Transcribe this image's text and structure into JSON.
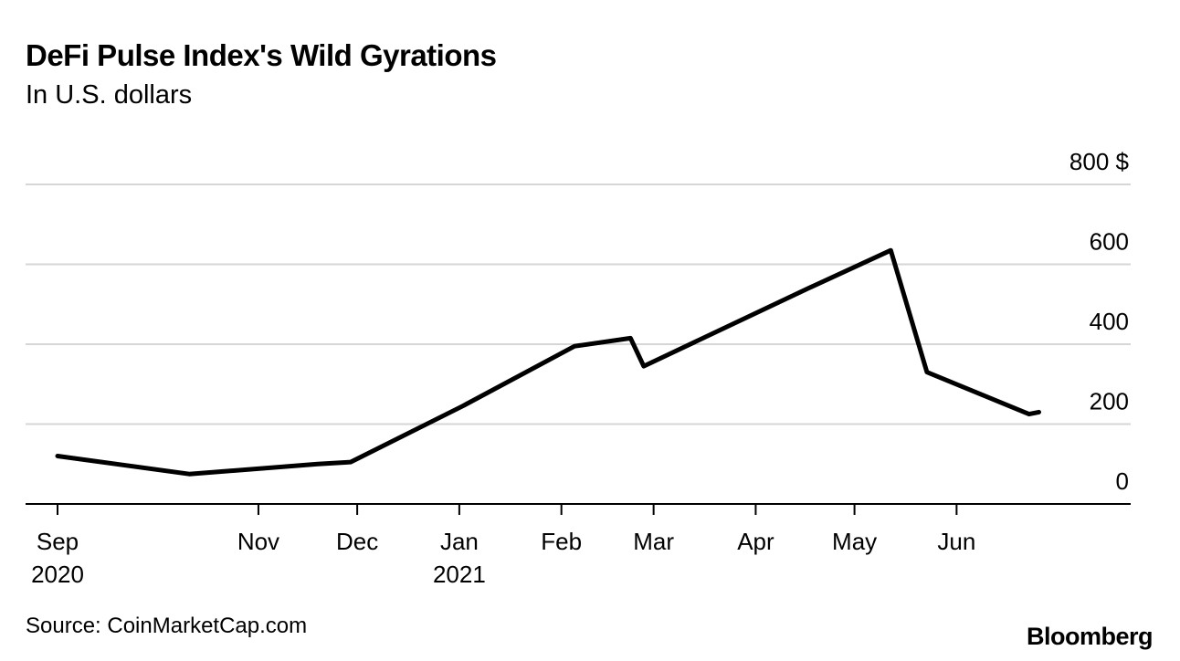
{
  "title": "DeFi Pulse Index's Wild Gyrations",
  "subtitle": "In U.S. dollars",
  "source": "Source: CoinMarketCap.com",
  "brand": "Bloomberg",
  "chart_data": {
    "type": "line",
    "title": "DeFi Pulse Index's Wild Gyrations",
    "subtitle": "In U.S. dollars",
    "xlabel": "",
    "ylabel": "",
    "xlim": [
      "2020-09-01",
      "2021-07-10"
    ],
    "ylim": [
      0,
      800
    ],
    "y_ticks": [
      {
        "value": 800,
        "label": "800 $"
      },
      {
        "value": 600,
        "label": "600"
      },
      {
        "value": 400,
        "label": "400"
      },
      {
        "value": 200,
        "label": "200"
      },
      {
        "value": 0,
        "label": "0"
      }
    ],
    "x_ticks": [
      {
        "date": "2020-09-01",
        "label": "Sep",
        "sublabel": "2020"
      },
      {
        "date": "2020-11-01",
        "label": "Nov",
        "sublabel": ""
      },
      {
        "date": "2020-12-01",
        "label": "Dec",
        "sublabel": ""
      },
      {
        "date": "2021-01-01",
        "label": "Jan",
        "sublabel": "2021"
      },
      {
        "date": "2021-02-01",
        "label": "Feb",
        "sublabel": ""
      },
      {
        "date": "2021-03-01",
        "label": "Mar",
        "sublabel": ""
      },
      {
        "date": "2021-04-01",
        "label": "Apr",
        "sublabel": ""
      },
      {
        "date": "2021-05-01",
        "label": "May",
        "sublabel": ""
      },
      {
        "date": "2021-06-01",
        "label": "Jun",
        "sublabel": ""
      }
    ],
    "grid": "horizontal",
    "series": [
      {
        "name": "",
        "color": "#000000",
        "points": [
          {
            "x": "2020-09-01",
            "y": 120
          },
          {
            "x": "2020-10-11",
            "y": 75
          },
          {
            "x": "2020-11-19",
            "y": 100
          },
          {
            "x": "2020-11-29",
            "y": 105
          },
          {
            "x": "2021-01-02",
            "y": 245
          },
          {
            "x": "2021-02-05",
            "y": 395
          },
          {
            "x": "2021-02-22",
            "y": 415
          },
          {
            "x": "2021-02-26",
            "y": 345
          },
          {
            "x": "2021-04-17",
            "y": 540
          },
          {
            "x": "2021-05-12",
            "y": 635
          },
          {
            "x": "2021-05-23",
            "y": 330
          },
          {
            "x": "2021-06-23",
            "y": 225
          },
          {
            "x": "2021-06-26",
            "y": 230
          }
        ]
      }
    ]
  }
}
